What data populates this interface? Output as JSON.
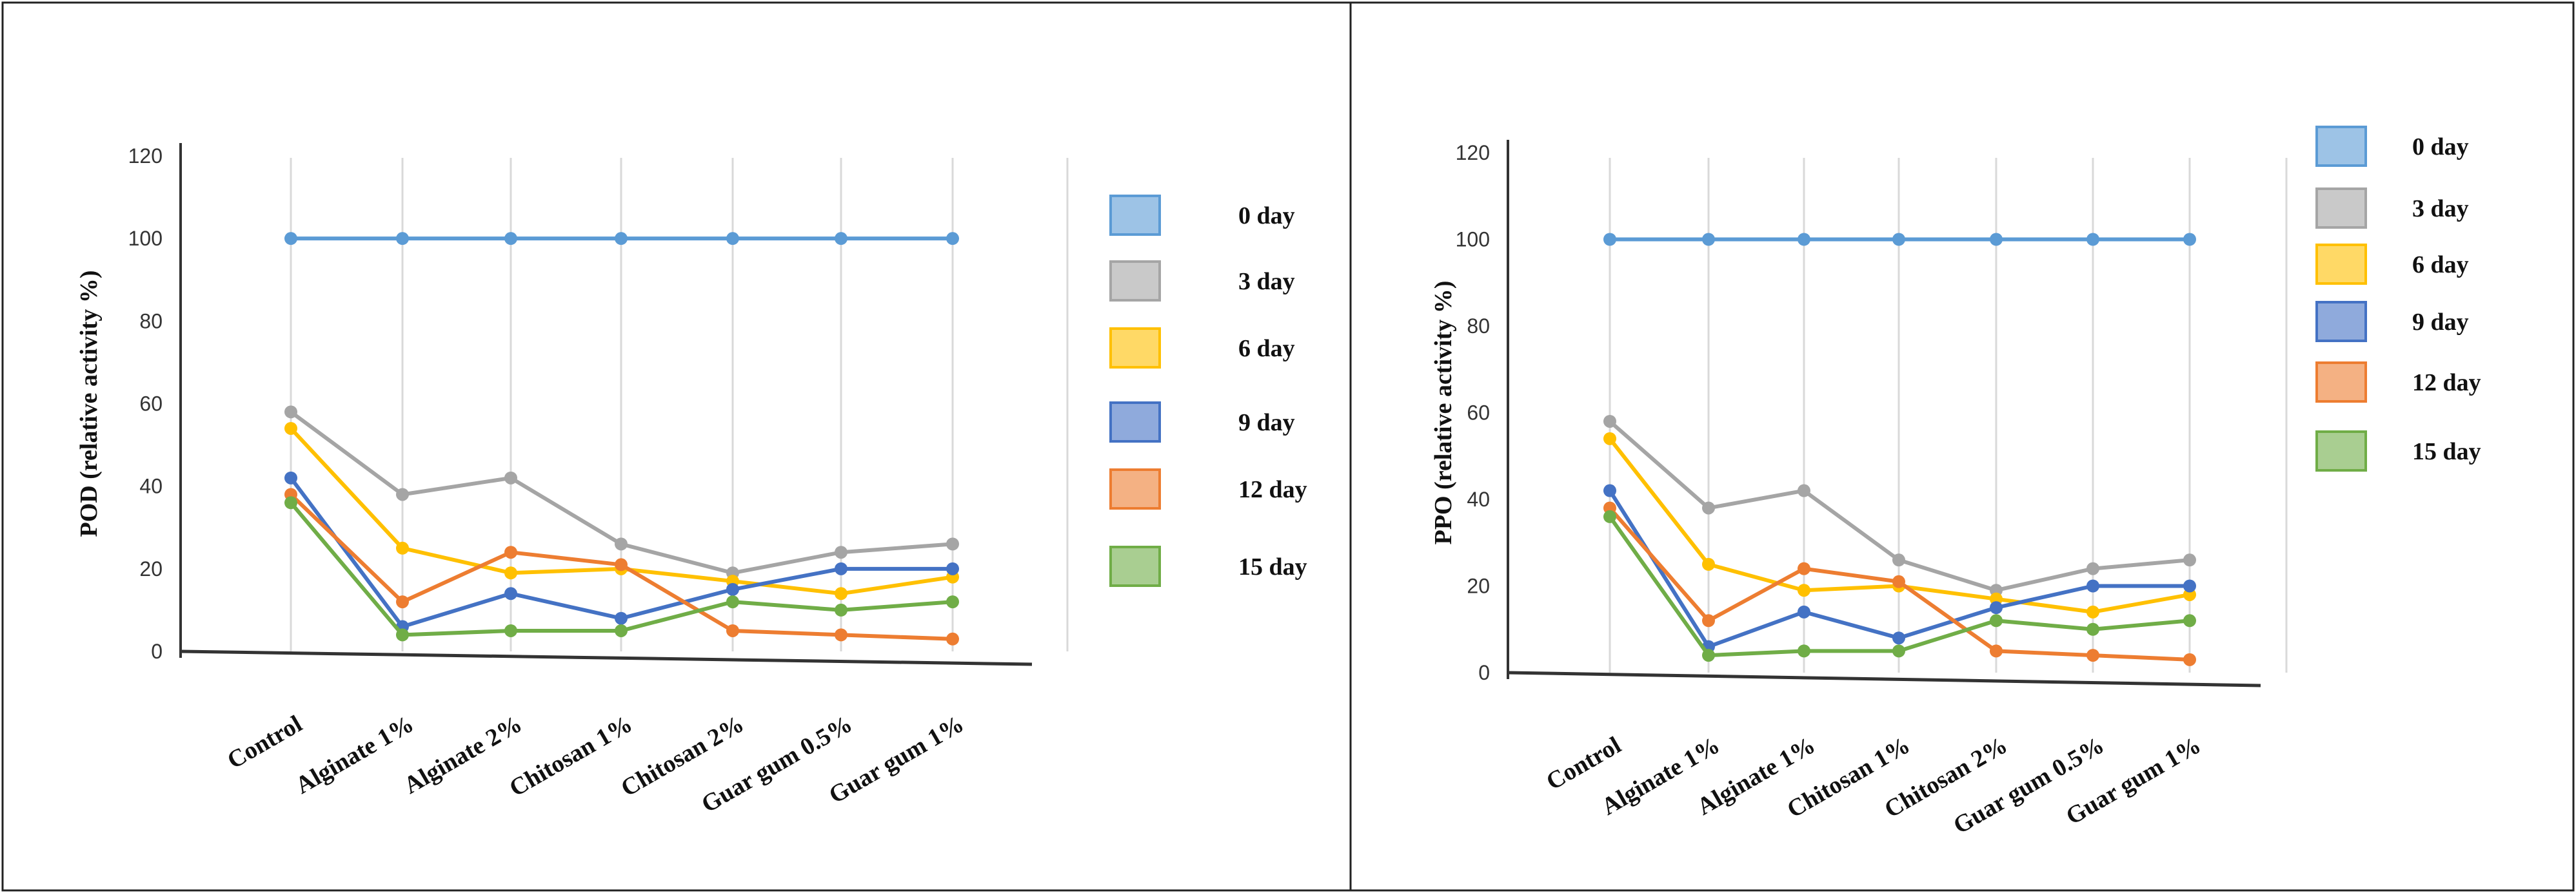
{
  "chart_data": [
    {
      "type": "line",
      "ylabel": "POD (relative activity %)",
      "xlabel": "",
      "ylim": [
        0,
        120
      ],
      "yticks": [
        "0",
        "20",
        "40",
        "60",
        "80",
        "100",
        "120"
      ],
      "grid": "vertical",
      "legend_position": "right",
      "categories": [
        "Control",
        "Alginate 1%",
        "Alginate 2%",
        "Chitosan 1%",
        "Chitosan 2%",
        "Guar gum 0.5%",
        "Guar gum 1%"
      ],
      "series": [
        {
          "name": "0 day",
          "color": "#5B9BD5",
          "values": [
            100,
            100,
            100,
            100,
            100,
            100,
            100
          ]
        },
        {
          "name": "3 day",
          "color": "#A5A5A5",
          "values": [
            58,
            38,
            42,
            26,
            19,
            24,
            26
          ]
        },
        {
          "name": "6 day",
          "color": "#FFC000",
          "values": [
            54,
            25,
            19,
            20,
            17,
            14,
            18
          ]
        },
        {
          "name": "9 day",
          "color": "#4472C4",
          "values": [
            42,
            6,
            14,
            8,
            15,
            20,
            20
          ]
        },
        {
          "name": "12 day",
          "color": "#ED7D31",
          "values": [
            38,
            12,
            24,
            21,
            5,
            4,
            3
          ]
        },
        {
          "name": "15 day",
          "color": "#70AD47",
          "values": [
            36,
            4,
            5,
            5,
            12,
            10,
            12
          ]
        }
      ]
    },
    {
      "type": "line",
      "ylabel": "PPO (relative activity %)",
      "xlabel": "",
      "ylim": [
        0,
        120
      ],
      "yticks": [
        "0",
        "20",
        "40",
        "60",
        "80",
        "100",
        "120"
      ],
      "grid": "vertical",
      "legend_position": "right",
      "categories": [
        "Control",
        "Alginate 1%",
        "Alginate 1%",
        "Chitosan 1%",
        "Chitosan 2%",
        "Guar gum 0.5%",
        "Guar gum 1%"
      ],
      "series": [
        {
          "name": "0 day",
          "color": "#5B9BD5",
          "values": [
            100,
            100,
            100,
            100,
            100,
            100,
            100
          ]
        },
        {
          "name": "3 day",
          "color": "#A5A5A5",
          "values": [
            58,
            38,
            42,
            26,
            19,
            24,
            26
          ]
        },
        {
          "name": "6 day",
          "color": "#FFC000",
          "values": [
            54,
            25,
            19,
            20,
            17,
            14,
            18
          ]
        },
        {
          "name": "9 day",
          "color": "#4472C4",
          "values": [
            42,
            6,
            14,
            8,
            15,
            20,
            20
          ]
        },
        {
          "name": "12 day",
          "color": "#ED7D31",
          "values": [
            38,
            12,
            24,
            21,
            5,
            4,
            3
          ]
        },
        {
          "name": "15 day",
          "color": "#70AD47",
          "values": [
            36,
            4,
            5,
            5,
            12,
            10,
            12
          ]
        }
      ]
    }
  ]
}
